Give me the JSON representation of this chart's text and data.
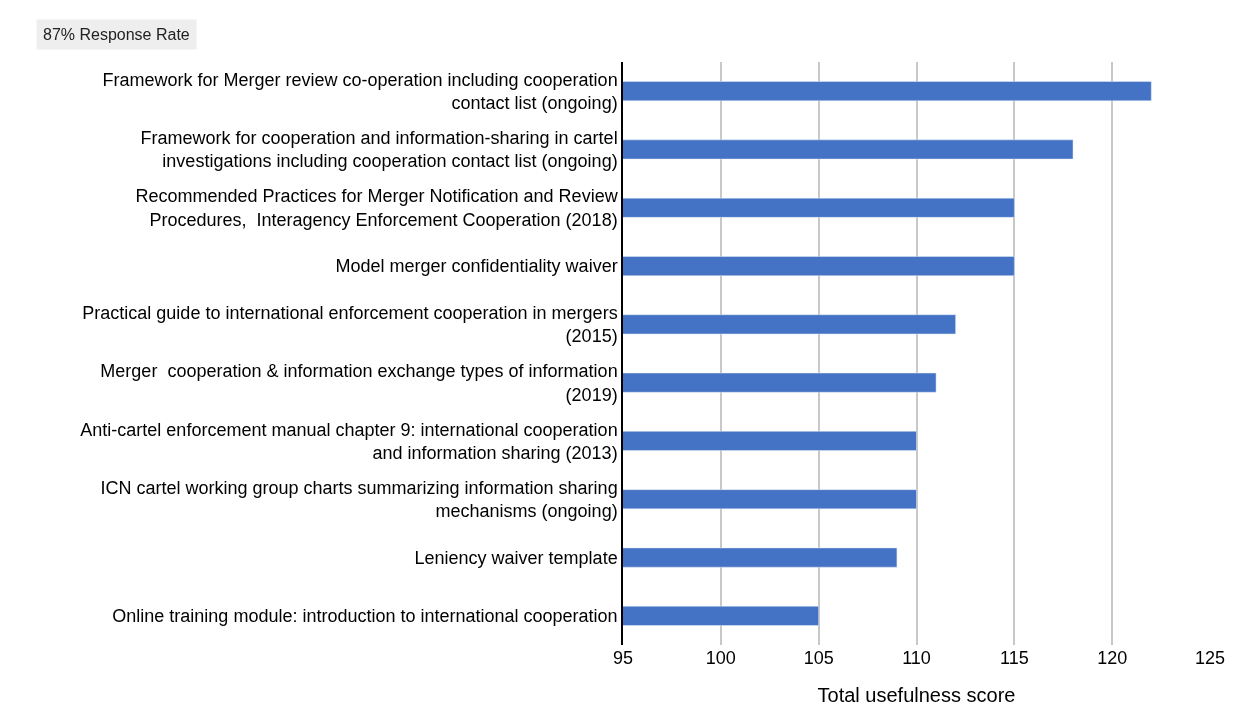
{
  "chart_data": {
    "type": "bar",
    "orientation": "horizontal",
    "xlabel": "Total usefulness score",
    "annotations": [
      "87% Response Rate"
    ],
    "categories": [
      "Framework for Merger review co-operation including cooperation\ncontact list (ongoing)",
      "Framework for cooperation and information-sharing in cartel\ninvestigations including cooperation contact list (ongoing)",
      "Recommended Practices for Merger Notification and Review\nProcedures,  Interagency Enforcement Cooperation (2018)",
      "Model merger confidentiality waiver",
      "Practical guide to international enforcement cooperation in mergers\n(2015)",
      "Merger  cooperation & information exchange types of information\n(2019)",
      "Anti-cartel enforcement manual chapter 9: international cooperation\nand information sharing (2013)",
      "ICN cartel working group charts summarizing information sharing\nmechanisms (ongoing)",
      "Leniency waiver template",
      "Online training module: introduction to international cooperation"
    ],
    "values": [
      122,
      118,
      115,
      115,
      112,
      111,
      110,
      110,
      109,
      105
    ],
    "color": "#4472c4",
    "xlim": [
      95,
      125
    ],
    "xticks": [
      95,
      100,
      105,
      110,
      115,
      120,
      125
    ],
    "grid": "x"
  }
}
